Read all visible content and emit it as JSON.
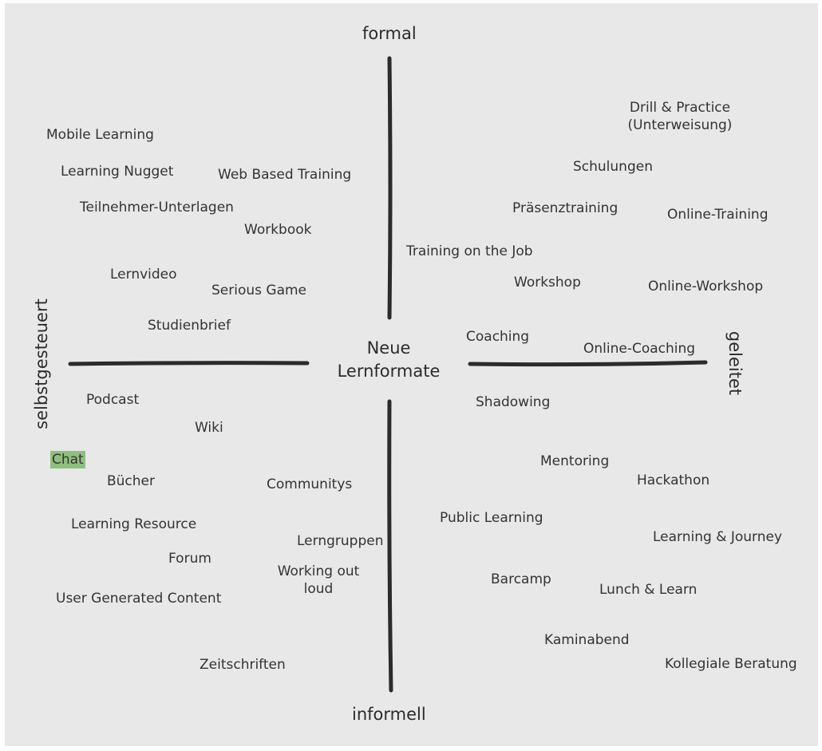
{
  "center": {
    "line1": "Neue",
    "line2": "Lernformate"
  },
  "axes": {
    "top": "formal",
    "bottom": "informell",
    "left": "selbstgesteuert",
    "right": "geleitet"
  },
  "highlight_color": "#8fbf7f",
  "items": {
    "mobile_learning": "Mobile Learning",
    "learning_nugget": "Learning Nugget",
    "web_based_training": "Web Based Training",
    "teilnehmer_unterlagen": "Teilnehmer-Unterlagen",
    "workbook": "Workbook",
    "lernvideo": "Lernvideo",
    "serious_game": "Serious Game",
    "studienbrief": "Studienbrief",
    "drill_practice": "Drill & Practice\n(Unterweisung)",
    "schulungen": "Schulungen",
    "praesenztraining": "Präsenztraining",
    "online_training": "Online-Training",
    "training_on_the_job": "Training on the Job",
    "workshop": "Workshop",
    "online_workshop": "Online-Workshop",
    "coaching": "Coaching",
    "online_coaching": "Online-Coaching",
    "shadowing": "Shadowing",
    "podcast": "Podcast",
    "wiki": "Wiki",
    "chat": "Chat",
    "buecher": "Bücher",
    "communitys": "Communitys",
    "learning_resource": "Learning Resource",
    "lerngruppen": "Lerngruppen",
    "forum": "Forum",
    "working_out_loud": "Working out\nloud",
    "user_generated_content": "User Generated Content",
    "zeitschriften": "Zeitschriften",
    "mentoring": "Mentoring",
    "hackathon": "Hackathon",
    "public_learning": "Public Learning",
    "learning_journey": "Learning & Journey",
    "barcamp": "Barcamp",
    "lunch_learn": "Lunch & Learn",
    "kaminabend": "Kaminabend",
    "kollegiale_beratung": "Kollegiale Beratung"
  }
}
